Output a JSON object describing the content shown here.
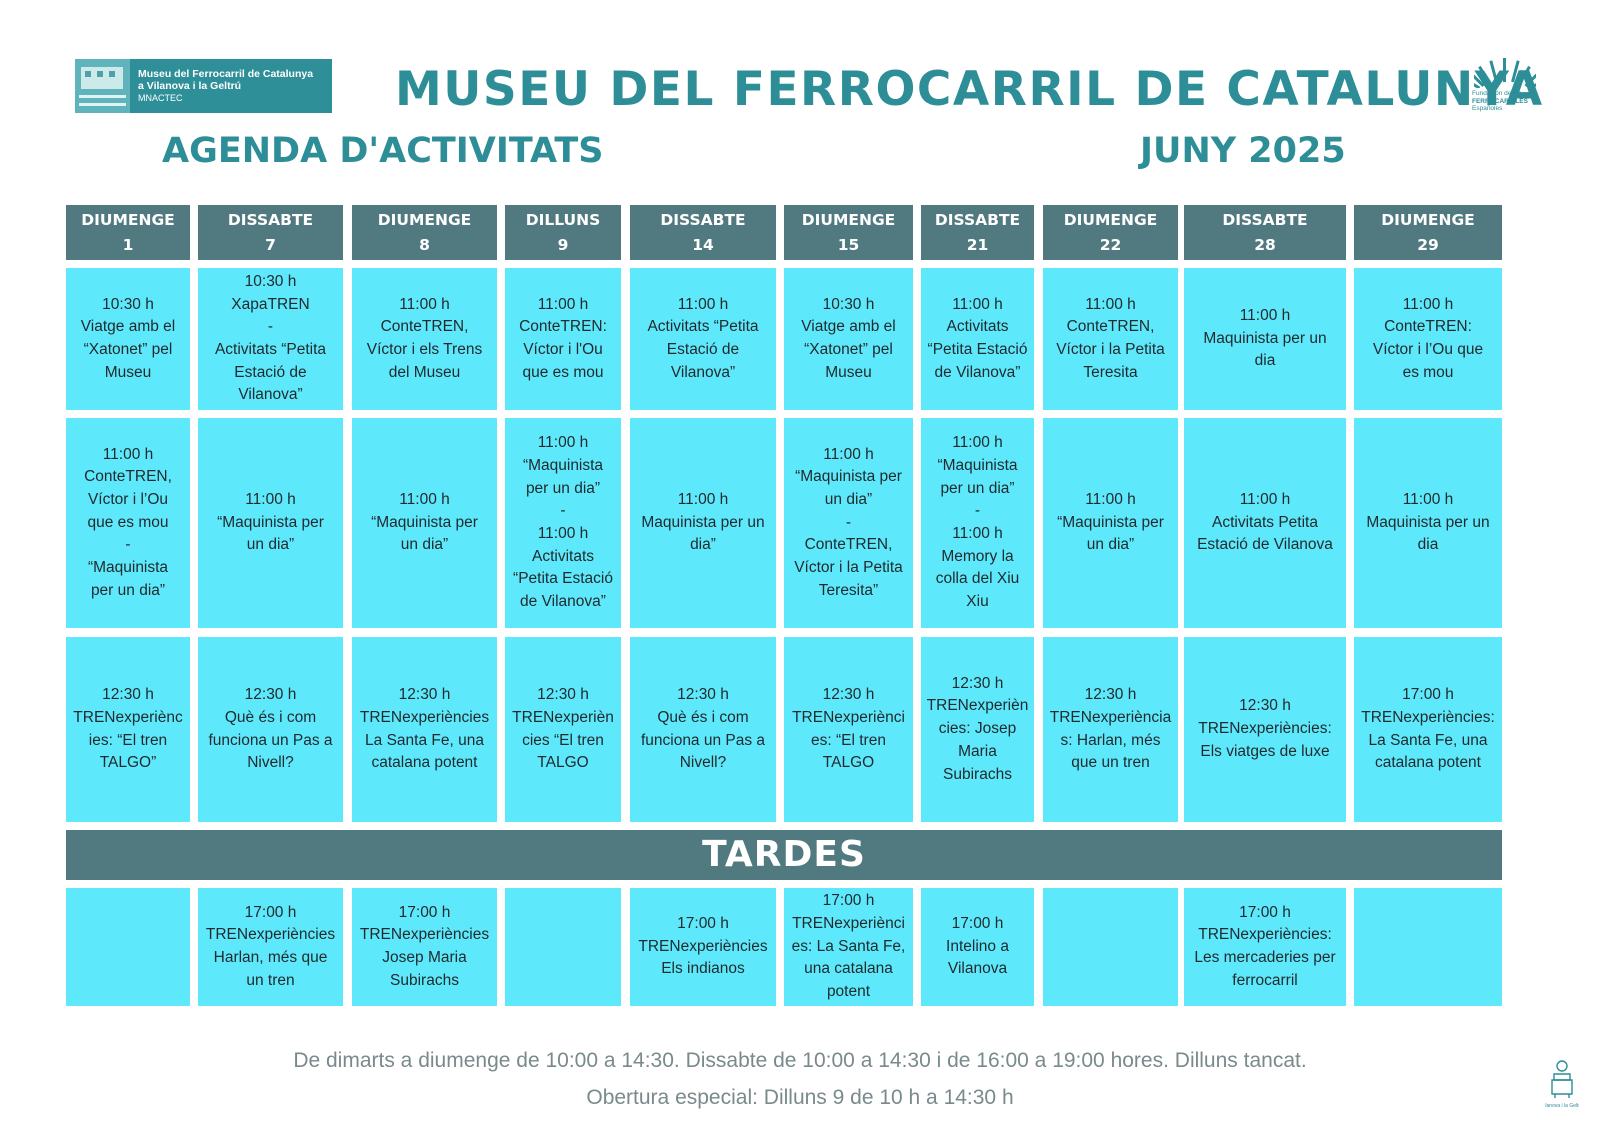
{
  "header": {
    "logo_left": {
      "line1": "Museu del Ferrocarril de Catalunya",
      "line2": "a Vilanova i la Geltrú",
      "line3": "MNACTEC"
    },
    "title": "MUSEU DEL FERROCARRIL DE CATALUNYA",
    "subtitle_left": "AGENDA D'ACTIVITATS",
    "subtitle_right": "JUNY 2025",
    "logo_right": {
      "line1": "Fundación de los",
      "line2": "FERROCARRILES",
      "line3": "Españoles"
    }
  },
  "colors": {
    "accent": "#2d8e98",
    "header_band": "#517a80",
    "cell_bg": "#5ee8fc"
  },
  "days": [
    {
      "weekday": "DIUMENGE",
      "date": "1"
    },
    {
      "weekday": "DISSABTE",
      "date": "7"
    },
    {
      "weekday": "DIUMENGE",
      "date": "8"
    },
    {
      "weekday": "DILLUNS",
      "date": "9"
    },
    {
      "weekday": "DISSABTE",
      "date": "14"
    },
    {
      "weekday": "DIUMENGE",
      "date": "15"
    },
    {
      "weekday": "DISSABTE",
      "date": "21"
    },
    {
      "weekday": "DIUMENGE",
      "date": "22"
    },
    {
      "weekday": "DISSABTE",
      "date": "28"
    },
    {
      "weekday": "DIUMENGE",
      "date": "29"
    }
  ],
  "morning_rows": [
    [
      "10:30 h\nViatge amb el\n“Xatonet” pel\nMuseu",
      "10:30 h\nXapaTREN\n-\nActivitats “Petita\nEstació de\nVilanova”",
      "11:00 h\nConteTREN,\nVíctor i els Trens\ndel Museu",
      "11:00 h\nConteTREN:\nVíctor i l'Ou\nque es mou",
      "11:00 h\nActivitats “Petita\nEstació de\nVilanova”",
      "10:30 h\nViatge amb el\n“Xatonet” pel\nMuseu",
      "11:00 h\nActivitats\n“Petita Estació\nde Vilanova”",
      "11:00 h\nConteTREN,\nVíctor i la Petita\nTeresita",
      "11:00 h\nMaquinista per un\ndia",
      "11:00 h\nConteTREN:\nVíctor i l’Ou que\nes mou"
    ],
    [
      "11:00 h\nConteTREN,\nVíctor i l’Ou\nque es mou\n-\n“Maquinista\nper un dia”",
      "11:00 h\n“Maquinista per\nun dia”",
      "11:00 h\n“Maquinista per\nun dia”",
      "11:00 h\n“Maquinista\nper un dia”\n-\n11:00 h\nActivitats\n“Petita Estació\nde Vilanova”",
      "11:00 h\nMaquinista per un\ndia”",
      "11:00 h\n“Maquinista per\nun dia”\n-\nConteTREN,\nVíctor i la Petita\nTeresita”",
      "11:00 h\n“Maquinista\nper un dia”\n-\n11:00 h\nMemory la\ncolla del Xiu\nXiu",
      "11:00 h\n“Maquinista per\nun dia”",
      "11:00 h\nActivitats Petita\nEstació de Vilanova",
      "11:00 h\nMaquinista per un\ndia"
    ],
    [
      "12:30 h\nTRENexperiènc\nies: “El tren\nTALGO”",
      "12:30 h\nQuè és i com\nfunciona un Pas a\nNivell?",
      "12:30 h\nTRENexperiències\nLa Santa Fe, una\ncatalana potent",
      "12:30 h\nTRENexperièn\ncies “El tren\nTALGO",
      "12:30 h\nQuè és i com\nfunciona un Pas a\nNivell?",
      "12:30 h\nTRENexperiènci\nes: “El tren\nTALGO",
      "12:30 h\nTRENexperièn\ncies: Josep\nMaria\nSubirachs",
      "12:30 h\nTRENexperiència\ns: Harlan, més\nque un tren",
      "12:30 h\nTRENexperiències:\nEls viatges de luxe",
      "17:00 h\nTRENexperiències:\nLa Santa Fe, una\ncatalana potent"
    ]
  ],
  "tardes_label": "TARDES",
  "afternoon_row": [
    "",
    "17:00 h\nTRENexperiències\nHarlan, més que\nun tren",
    "17:00 h\nTRENexperiències\nJosep Maria\nSubirachs",
    "",
    "17:00 h\nTRENexperiències\nEls indianos",
    "17:00 h\nTRENexperiènci\nes: La Santa Fe,\nuna catalana\npotent",
    "17:00 h\nIntelino a\nVilanova",
    "",
    "17:00 h\nTRENexperiències:\nLes mercaderies per\nferrocarril",
    ""
  ],
  "footer": {
    "line1": "De dimarts a diumenge de 10:00 a 14:30. Dissabte de 10:00 a 14:30 i de 16:00 a 19:00 hores. Dilluns tancat.",
    "line2": "Obertura especial: Dilluns 9 de 10 h a 14:30 h"
  },
  "icons": {
    "logo_left": "museum-photo-logo",
    "logo_right": "fan-logo",
    "logo_corner": "vilanova-logo"
  }
}
